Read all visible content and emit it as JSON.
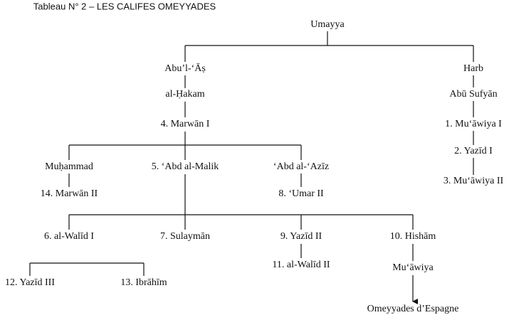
{
  "title": "Tableau N° 2 – LES CALIFES OMEYYADES",
  "nodes": [
    {
      "label": "Umayya"
    },
    {
      "label": "Abu’l-‘Āṣ"
    },
    {
      "label": "Harb"
    },
    {
      "label": "al-Ḥakam"
    },
    {
      "label": "Abū Sufyān"
    },
    {
      "label": "4. Marwān I"
    },
    {
      "label": "1. Mu‘āwiya I"
    },
    {
      "label": "Muḥammad"
    },
    {
      "label": "5. ‘Abd al-Malik"
    },
    {
      "label": "‘Abd al-‘Azīz"
    },
    {
      "label": "2. Yazīd I"
    },
    {
      "label": "3. Mu‘āwiya II"
    },
    {
      "label": "14. Marwān II"
    },
    {
      "label": "8. ‘Umar II"
    },
    {
      "label": "6. al-Walīd I"
    },
    {
      "label": "7. Sulaymān"
    },
    {
      "label": "9. Yazīd II"
    },
    {
      "label": "10. Hishām"
    },
    {
      "label": "11. al-Walīd II"
    },
    {
      "label": "Mu‘āwiya"
    },
    {
      "label": "12. Yazīd III"
    },
    {
      "label": "13. Ibrāhīm"
    },
    {
      "label": "Omeyyades d’Espagne"
    }
  ]
}
